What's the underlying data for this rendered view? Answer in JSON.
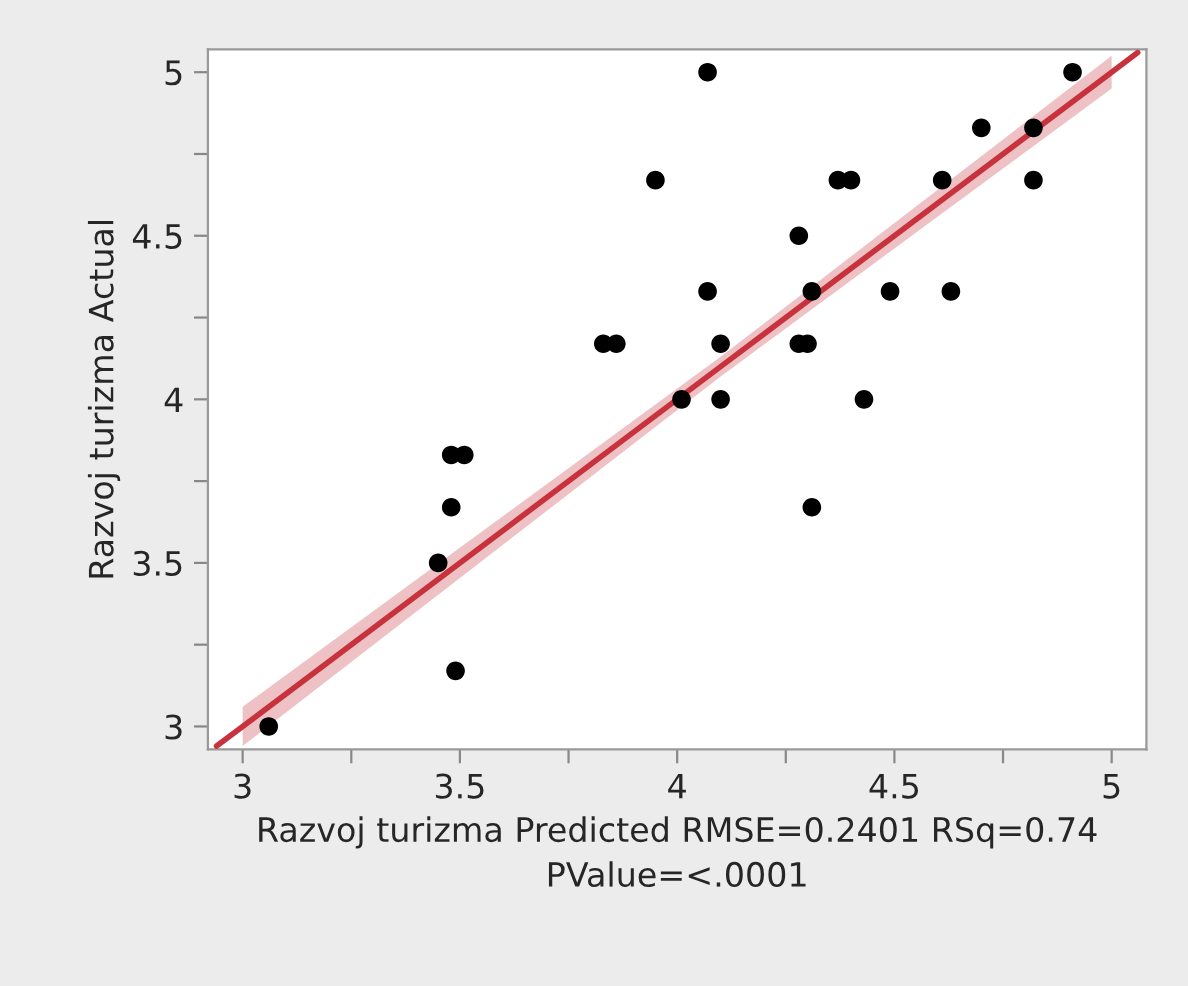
{
  "chart_data": {
    "type": "scatter",
    "xlabel": "Razvoj turizma Predicted RMSE=0.2401 RSq=0.74\nPValue=<.0001",
    "ylabel": "Razvoj turizma Actual",
    "xlim": [
      2.92,
      5.08
    ],
    "ylim": [
      2.93,
      5.07
    ],
    "xticks": [
      3,
      {
        "value": 3.25,
        "label": null
      },
      3.5,
      {
        "value": 3.75,
        "label": null
      },
      4,
      {
        "value": 4.25,
        "label": null
      },
      4.5,
      {
        "value": 4.75,
        "label": null
      },
      5
    ],
    "yticks": [
      3,
      {
        "value": 3.25,
        "label": null
      },
      3.5,
      {
        "value": 3.75,
        "label": null
      },
      4,
      {
        "value": 4.25,
        "label": null
      },
      4.5,
      {
        "value": 4.75,
        "label": null
      },
      5
    ],
    "grid": false,
    "marker": "circle",
    "series": [
      {
        "color": "#000000",
        "x": [
          3.06,
          3.45,
          3.48,
          3.48,
          3.51,
          3.49,
          3.83,
          3.86,
          3.95,
          4.07,
          4.07,
          4.01,
          4.1,
          4.1,
          4.28,
          4.28,
          4.3,
          4.31,
          4.31,
          4.37,
          4.4,
          4.43,
          4.49,
          4.61,
          4.63,
          4.7,
          4.82,
          4.82,
          4.91
        ],
        "values": [
          3.0,
          3.5,
          3.67,
          3.83,
          3.83,
          3.17,
          4.17,
          4.17,
          4.67,
          5.0,
          4.33,
          4.0,
          4.17,
          4.0,
          4.5,
          4.17,
          4.17,
          4.33,
          3.67,
          4.67,
          4.67,
          4.0,
          4.33,
          4.67,
          4.33,
          4.83,
          4.83,
          4.67,
          5.0
        ]
      },
      {
        "type": "line",
        "marker": "none",
        "color": "#c8323c",
        "x": [
          2.94,
          3.0,
          4.1,
          5.0,
          5.06
        ],
        "values": [
          2.94,
          3.0,
          4.1,
          5.0,
          5.06
        ],
        "lower": [
          null,
          2.94,
          4.07,
          4.95,
          null
        ],
        "upper": [
          null,
          3.06,
          4.13,
          5.05,
          null
        ]
      }
    ]
  }
}
